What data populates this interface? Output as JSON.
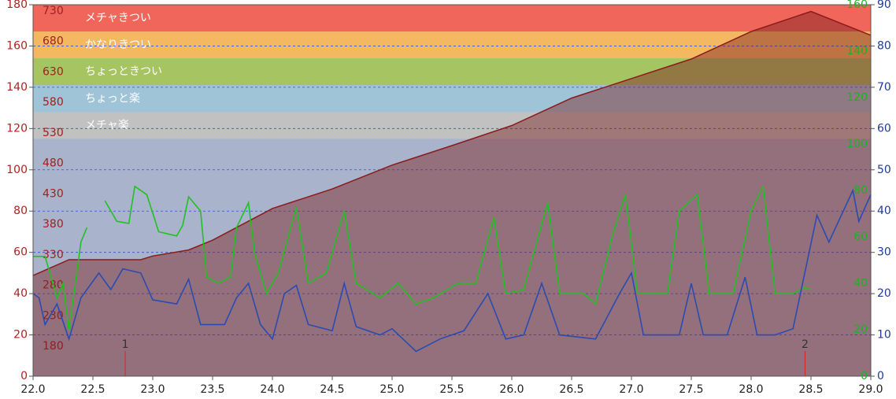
{
  "chart_data": {
    "type": "line",
    "xlim": [
      22,
      29
    ],
    "xticks": [
      {
        "value": 22,
        "label": "22.0"
      },
      {
        "value": 22.5,
        "label": "22.5"
      },
      {
        "value": 23,
        "label": "23.0"
      },
      {
        "value": 23.5,
        "label": "23.5"
      },
      {
        "value": 24,
        "label": "24.0"
      },
      {
        "value": 24.5,
        "label": "24.5"
      },
      {
        "value": 25,
        "label": "25.0"
      },
      {
        "value": 25.5,
        "label": "25.5"
      },
      {
        "value": 26,
        "label": "26.0"
      },
      {
        "value": 26.5,
        "label": "26.5"
      },
      {
        "value": 27,
        "label": "27.0"
      },
      {
        "value": 27.5,
        "label": "27.5"
      },
      {
        "value": 28,
        "label": "28.0"
      },
      {
        "value": 28.5,
        "label": "28.5"
      },
      {
        "value": 29,
        "label": "29.0"
      }
    ],
    "ylim": [
      0,
      180
    ],
    "yticks": [
      0,
      20,
      40,
      60,
      80,
      100,
      120,
      140,
      160,
      180
    ],
    "y2lim": [
      0,
      90
    ],
    "y2ticks": [
      0,
      10,
      20,
      30,
      40,
      50,
      60,
      70,
      80,
      90
    ],
    "y3lim": [
      0,
      160
    ],
    "y3ticks": [
      0,
      20,
      40,
      60,
      80,
      100,
      120,
      140,
      160
    ],
    "y4lim": [
      131,
      740
    ],
    "y4ticks": [
      180,
      230,
      280,
      330,
      380,
      430,
      480,
      530,
      580,
      630,
      680,
      730
    ],
    "grid": true,
    "background": "#a9b3cb",
    "zones": [
      {
        "label": "メチャきつい",
        "range": [
          167,
          180
        ],
        "color": "#f0665a"
      },
      {
        "label": "かなりきつい",
        "range": [
          154,
          167
        ],
        "color": "#f5b862"
      },
      {
        "label": "ちょっときつい",
        "range": [
          141,
          154
        ],
        "color": "#a6c462"
      },
      {
        "label": "ちょっと楽",
        "range": [
          128,
          141
        ],
        "color": "#9fc3d7"
      },
      {
        "label": "メチャ楽",
        "range": [
          115,
          128
        ],
        "color": "#c1c1c1"
      }
    ],
    "markers": [
      {
        "x": 22.77,
        "label": "1"
      },
      {
        "x": 28.45,
        "label": "2"
      }
    ],
    "series": [
      {
        "axis": "y4",
        "color": "#8b1a1a",
        "fill": true,
        "x": [
          22.0,
          22.3,
          22.5,
          22.9,
          23.0,
          23.3,
          23.5,
          24.0,
          24.5,
          25.0,
          25.5,
          26.0,
          26.5,
          27.0,
          27.5,
          28.0,
          28.5,
          29.0
        ],
        "values": [
          296,
          322,
          322,
          322,
          328,
          338,
          354,
          406,
          438,
          477,
          509,
          542,
          587,
          619,
          651,
          696,
          729,
          690
        ]
      },
      {
        "axis": "y3",
        "color": "#22c022",
        "x": [
          22.0,
          22.1,
          22.2,
          22.25,
          22.3,
          22.4,
          22.45,
          22.5,
          22.6,
          22.7,
          22.8,
          22.85,
          22.95,
          23.05,
          23.2,
          23.25,
          23.3,
          23.4,
          23.45,
          23.55,
          23.65,
          23.7,
          23.8,
          23.85,
          23.95,
          24.05,
          24.2,
          24.3,
          24.45,
          24.6,
          24.7,
          24.9,
          25.05,
          25.2,
          25.35,
          25.55,
          25.7,
          25.85,
          25.95,
          26.1,
          26.3,
          26.4,
          26.6,
          26.7,
          26.85,
          26.95,
          27.05,
          27.3,
          27.4,
          27.55,
          27.65,
          27.85,
          28.0,
          28.1,
          28.2,
          28.35,
          28.45,
          28.5
        ],
        "values": [
          51.6,
          51.6,
          33.8,
          40,
          19.6,
          57.8,
          64,
          null,
          75.6,
          66.7,
          65.8,
          81.8,
          78.2,
          62.2,
          60.4,
          64.9,
          77.3,
          71.1,
          42.7,
          40,
          42.7,
          64,
          74.7,
          53.3,
          35.6,
          44.4,
          72.9,
          40,
          44.4,
          71.1,
          40,
          33.8,
          40,
          31.1,
          33.8,
          40,
          40,
          68.4,
          35.6,
          37.3,
          74.7,
          35.6,
          35.6,
          31.1,
          62.2,
          78.2,
          35.6,
          35.6,
          71.1,
          78.2,
          35.6,
          35.6,
          71.1,
          81.8,
          35.6,
          35.6,
          38.2,
          37.3
        ]
      },
      {
        "axis": "y2",
        "color": "#2a4bb0",
        "x": [
          22.0,
          22.05,
          22.1,
          22.2,
          22.3,
          22.4,
          22.55,
          22.65,
          22.75,
          22.9,
          23.0,
          23.2,
          23.3,
          23.4,
          23.6,
          23.7,
          23.8,
          23.9,
          24.0,
          24.1,
          24.2,
          24.3,
          24.5,
          24.6,
          24.7,
          24.9,
          25.0,
          25.2,
          25.4,
          25.6,
          25.8,
          25.95,
          26.1,
          26.25,
          26.4,
          26.7,
          26.9,
          27.0,
          27.1,
          27.4,
          27.5,
          27.6,
          27.8,
          27.95,
          28.05,
          28.2,
          28.35,
          28.55,
          28.65,
          28.85,
          28.9,
          29.0
        ],
        "values": [
          20,
          19,
          12.5,
          17.5,
          9,
          19,
          25,
          21,
          26,
          25,
          18.5,
          17.5,
          23.5,
          12.5,
          12.5,
          19,
          22.5,
          12.5,
          9,
          20,
          22,
          12.5,
          11,
          22.5,
          12,
          10,
          11.5,
          6,
          9,
          11,
          20,
          9,
          10,
          22.5,
          10,
          9,
          20,
          25,
          10,
          10,
          22.5,
          10,
          10,
          24,
          10,
          10,
          11.5,
          39,
          32.5,
          45,
          37.5,
          44
        ]
      }
    ]
  }
}
